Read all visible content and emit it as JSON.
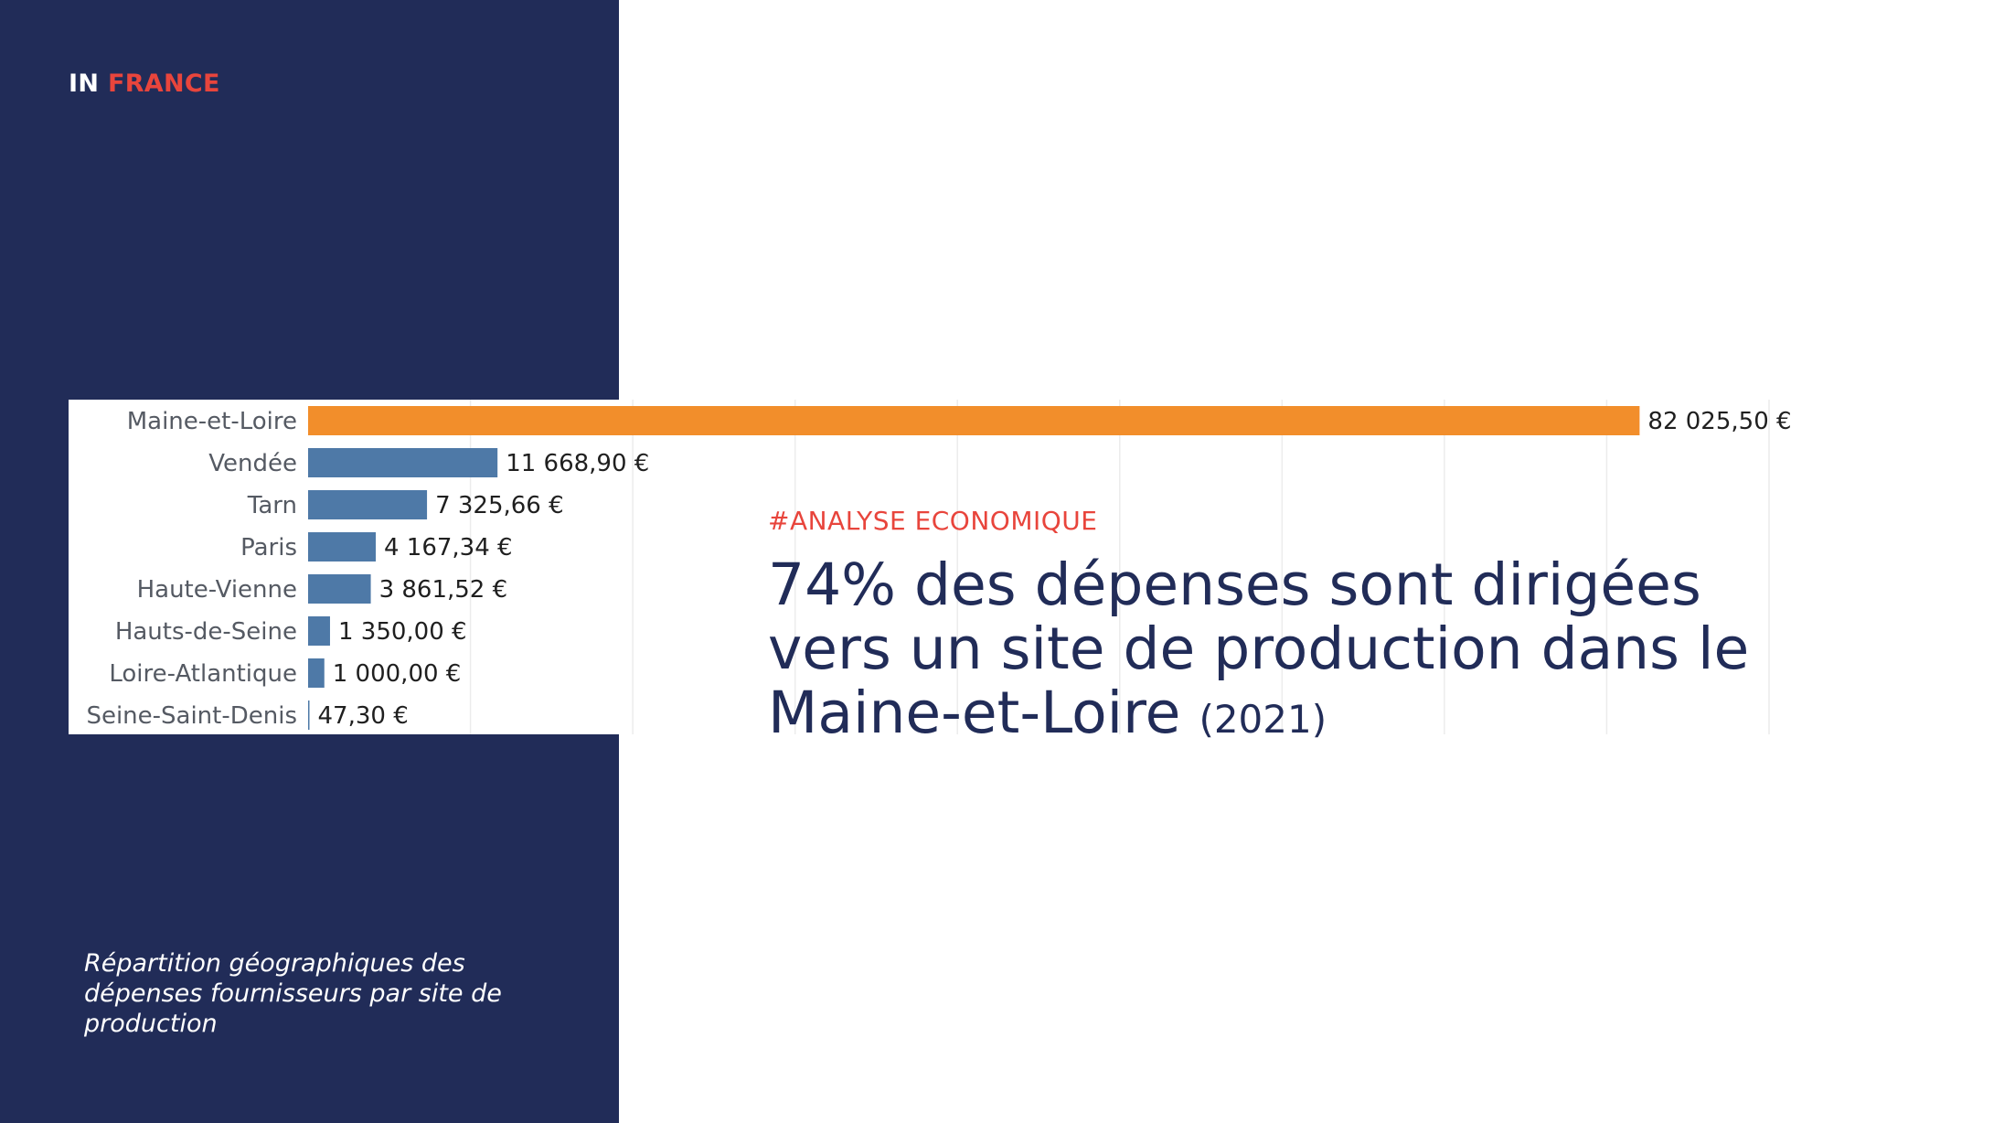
{
  "brand": {
    "prefix": "IN",
    "highlight": "FRANCE"
  },
  "caption": "Répartition géographiques des dépenses fournisseurs par site de production",
  "tag": "#ANALYSE ECONOMIQUE",
  "headline": {
    "main": "74% des dépenses sont dirigées vers un site de production dans le Maine-et-Loire",
    "year": "(2021)"
  },
  "colors": {
    "panel": "#212c58",
    "accent": "#e8453c",
    "highlight_bar": "#f28e2b",
    "bar": "#4e79a7"
  },
  "chart_data": {
    "type": "bar",
    "orientation": "horizontal",
    "categories": [
      "Maine-et-Loire",
      "Vendée",
      "Tarn",
      "Paris",
      "Haute-Vienne",
      "Hauts-de-Seine",
      "Loire-Atlantique",
      "Seine-Saint-Denis"
    ],
    "values": [
      82025.5,
      11668.9,
      7325.66,
      4167.34,
      3861.52,
      1350.0,
      1000.0,
      47.3
    ],
    "value_labels": [
      "82 025,50 €",
      "11 668,90 €",
      "7 325,66 €",
      "4 167,34 €",
      "3 861,52 €",
      "1 350,00 €",
      "1 000,00 €",
      "47,30 €"
    ],
    "highlight_index": 0,
    "xlim": [
      0,
      90000
    ],
    "grid": true,
    "title": "",
    "xlabel": "",
    "ylabel": ""
  }
}
